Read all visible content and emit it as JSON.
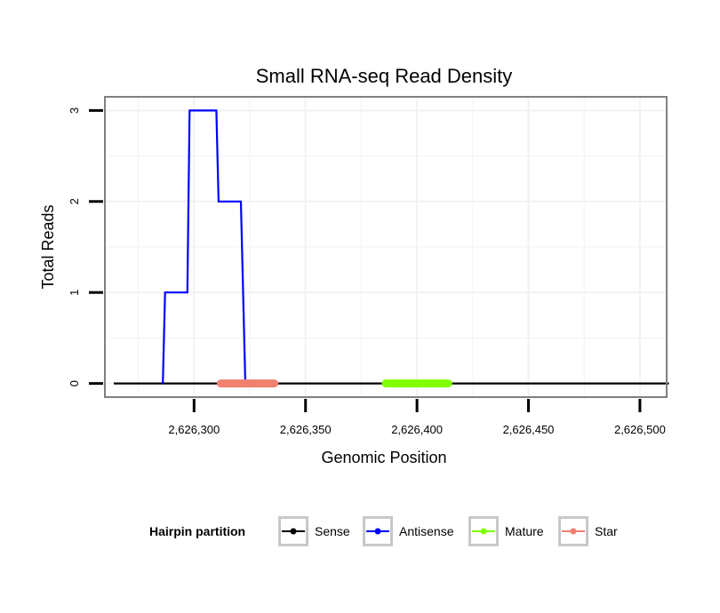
{
  "chart_data": {
    "type": "line",
    "title": "Small RNA-seq Read Density",
    "xlabel": "Genomic Position",
    "ylabel": "Total Reads",
    "xlim": [
      2626260,
      2626512
    ],
    "ylim": [
      -0.15,
      3.15
    ],
    "x_ticks": [
      2626300,
      2626350,
      2626400,
      2626450,
      2626500
    ],
    "x_tick_labels": [
      "2,626,300",
      "2,626,350",
      "2,626,400",
      "2,626,450",
      "2,626,500"
    ],
    "y_ticks": [
      0,
      1,
      2,
      3
    ],
    "y_tick_labels": [
      "0",
      "1",
      "2",
      "3"
    ],
    "grid": true,
    "legend": {
      "title": "Hairpin partition",
      "position": "bottom",
      "entries": [
        "Sense",
        "Antisense",
        "Mature",
        "Star"
      ]
    },
    "series": [
      {
        "name": "Sense",
        "color": "#000000",
        "style": "line",
        "points": [
          [
            2626264,
            0
          ],
          [
            2626513,
            0
          ]
        ]
      },
      {
        "name": "Antisense",
        "color": "#0000ff",
        "style": "step",
        "points": [
          [
            2626286,
            0
          ],
          [
            2626287,
            1
          ],
          [
            2626297,
            1
          ],
          [
            2626298,
            3
          ],
          [
            2626310,
            3
          ],
          [
            2626311,
            2
          ],
          [
            2626321,
            2
          ],
          [
            2626323,
            0
          ]
        ]
      },
      {
        "name": "Mature",
        "color": "#80ff00",
        "style": "segment",
        "points": [
          [
            2626386,
            0
          ],
          [
            2626414,
            0
          ]
        ]
      },
      {
        "name": "Star",
        "color": "#f08070",
        "style": "segment",
        "points": [
          [
            2626312,
            0
          ],
          [
            2626336,
            0
          ]
        ]
      }
    ]
  }
}
